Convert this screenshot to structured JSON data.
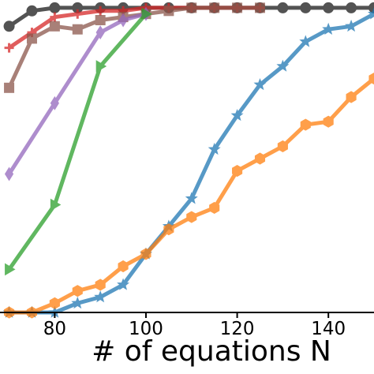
{
  "chart_data": {
    "type": "line",
    "title": "",
    "xlabel": "# of equations N",
    "ylabel": "",
    "xlim": [
      68,
      150
    ],
    "ylim": [
      0,
      1.0
    ],
    "xticks": [
      80,
      100,
      120,
      140
    ],
    "xtick_labels": [
      "80",
      "100",
      "120",
      "140"
    ],
    "grid": false,
    "legend": "none",
    "series": [
      {
        "color": "#1a1a1a",
        "marker": "circle",
        "x": [
          70,
          75,
          80,
          85,
          90,
          95,
          100,
          105,
          110,
          115,
          120,
          125,
          130,
          135,
          140,
          145,
          150
        ],
        "y": [
          0.93,
          0.98,
          0.99,
          0.99,
          0.99,
          0.99,
          0.99,
          0.99,
          0.99,
          0.99,
          0.99,
          0.99,
          0.99,
          0.99,
          0.99,
          0.99,
          0.99
        ]
      },
      {
        "color": "#d62728",
        "marker": "plus",
        "x": [
          70,
          75,
          80,
          85,
          90,
          95,
          100,
          105,
          110,
          115,
          120,
          125
        ],
        "y": [
          0.86,
          0.91,
          0.96,
          0.97,
          0.98,
          0.98,
          0.99,
          0.99,
          0.99,
          0.99,
          0.99,
          0.99
        ]
      },
      {
        "color": "#8c564b",
        "marker": "square",
        "x": [
          70,
          75,
          80,
          85,
          90,
          95,
          100,
          105,
          110,
          115,
          120,
          125
        ],
        "y": [
          0.73,
          0.89,
          0.93,
          0.92,
          0.95,
          0.96,
          0.97,
          0.98,
          0.99,
          0.99,
          0.99,
          0.99
        ]
      },
      {
        "color": "#9467bd",
        "marker": "diamond",
        "x": [
          70,
          80,
          90,
          95,
          100
        ],
        "y": [
          0.45,
          0.68,
          0.91,
          0.95,
          0.97
        ]
      },
      {
        "color": "#2ca02c",
        "marker": "triangle-right",
        "x": [
          70,
          80,
          90,
          100
        ],
        "y": [
          0.14,
          0.35,
          0.8,
          0.97
        ]
      },
      {
        "color": "#1f77b4",
        "marker": "star",
        "x": [
          70,
          75,
          80,
          85,
          90,
          95,
          100,
          105,
          110,
          115,
          120,
          125,
          130,
          135,
          140,
          145,
          150
        ],
        "y": [
          0.0,
          0.0,
          0.0,
          0.03,
          0.05,
          0.09,
          0.19,
          0.28,
          0.37,
          0.53,
          0.64,
          0.74,
          0.8,
          0.88,
          0.92,
          0.93,
          0.97
        ]
      },
      {
        "color": "#ff7f0e",
        "marker": "hexagon",
        "x": [
          70,
          75,
          80,
          85,
          90,
          95,
          100,
          105,
          110,
          115,
          120,
          125,
          130,
          135,
          140,
          145,
          150
        ],
        "y": [
          0.0,
          0.0,
          0.03,
          0.07,
          0.09,
          0.15,
          0.19,
          0.27,
          0.31,
          0.34,
          0.46,
          0.5,
          0.54,
          0.61,
          0.62,
          0.7,
          0.76
        ]
      }
    ]
  }
}
